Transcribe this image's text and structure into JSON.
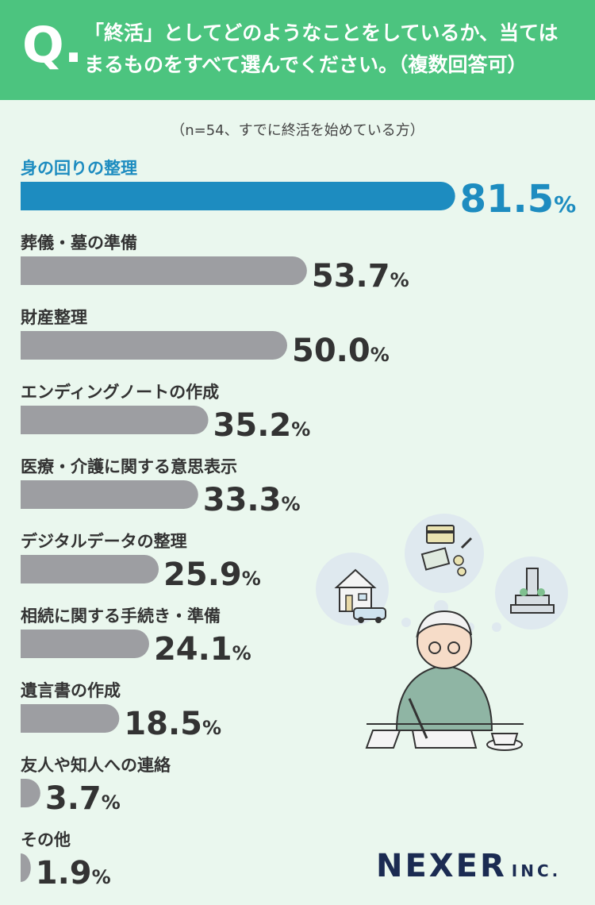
{
  "header": {
    "q_mark": "Q.",
    "question": "「終活」としてどのようなことをしているか、当てはまるものをすべて選んでください。（複数回答可）"
  },
  "sample_note": "（n=54、すでに終活を始めている方）",
  "colors": {
    "header": "#4cc47f",
    "highlight": "#1d8cc0",
    "bar": "#9d9ea2",
    "background": "#eaf7ee",
    "label": "#333333"
  },
  "chart_data": {
    "type": "bar",
    "orientation": "horizontal",
    "unit": "%",
    "categories": [
      "身の回りの整理",
      "葬儀・墓の準備",
      "財産整理",
      "エンディングノートの作成",
      "医療・介護に関する意思表示",
      "デジタルデータの整理",
      "相続に関する手続き・準備",
      "遺言書の作成",
      "友人や知人への連絡",
      "その他"
    ],
    "values": [
      81.5,
      53.7,
      50.0,
      35.2,
      33.3,
      25.9,
      24.1,
      18.5,
      3.7,
      1.9
    ],
    "value_labels": [
      "81.5",
      "53.7",
      "50.0",
      "35.2",
      "33.3",
      "25.9",
      "24.1",
      "18.5",
      "3.7",
      "1.9"
    ],
    "highlight_index": 0,
    "xlim": [
      0,
      100
    ],
    "grid": false,
    "legend": "none"
  },
  "logo": {
    "name": "NEXER",
    "suffix": "INC."
  },
  "illustration": {
    "subject": "elderly-man-writing-icon"
  }
}
